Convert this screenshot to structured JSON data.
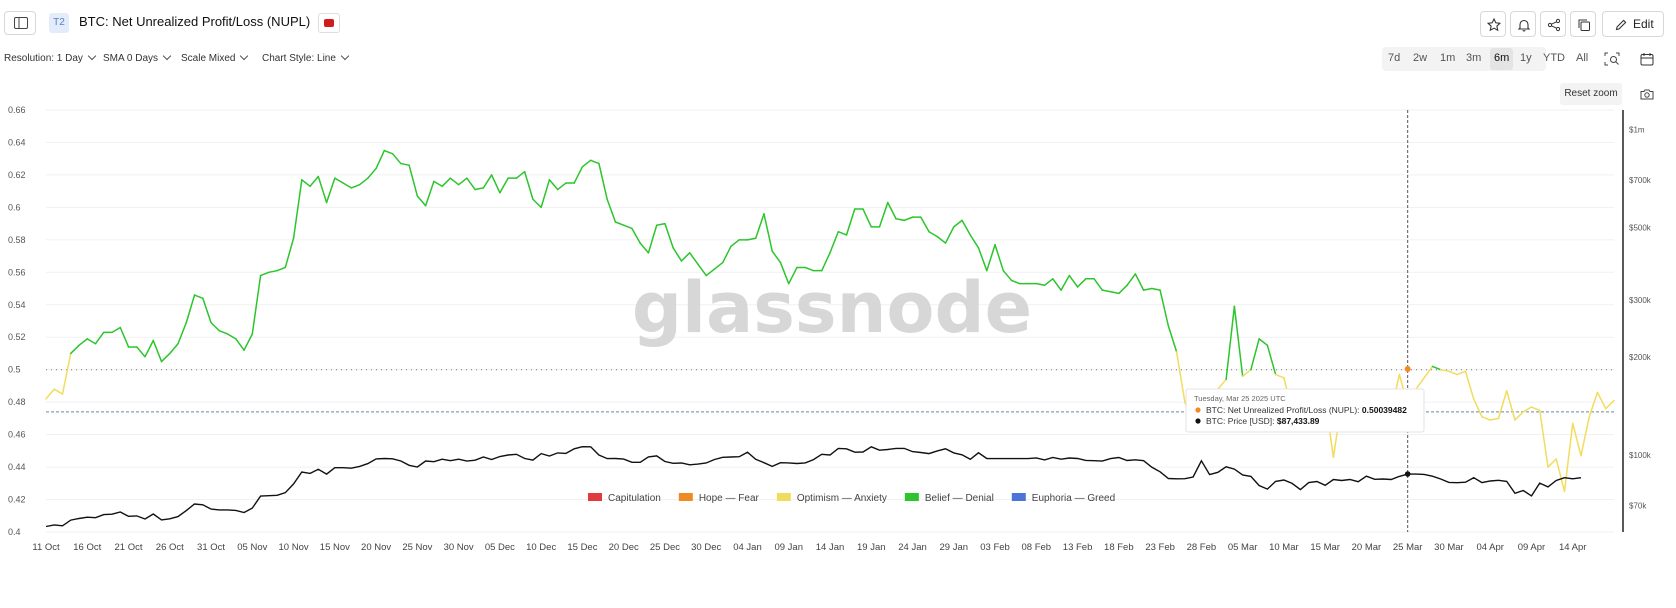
{
  "header": {
    "tier_badge": "T2",
    "title": "BTC: Net Unrealized Profit/Loss (NUPL)",
    "edit_label": "Edit",
    "icons": [
      "sidebar-toggle-icon",
      "youtube-icon",
      "star-icon",
      "bell-icon",
      "share-icon",
      "copy-icon",
      "pencil-icon"
    ]
  },
  "controls": {
    "resolution": "Resolution: 1 Day",
    "sma": "SMA 0 Days",
    "scale": "Scale Mixed",
    "chart_style": "Chart Style: Line",
    "ranges": [
      "7d",
      "2w",
      "1m",
      "3m",
      "6m",
      "1y",
      "YTD",
      "All"
    ],
    "active_range": "6m",
    "reset_zoom": "Reset zoom"
  },
  "chart_data": {
    "type": "line",
    "watermark": "glassnode",
    "x_tick_labels": [
      "11 Oct",
      "16 Oct",
      "21 Oct",
      "26 Oct",
      "31 Oct",
      "05 Nov",
      "10 Nov",
      "15 Nov",
      "20 Nov",
      "25 Nov",
      "30 Nov",
      "05 Dec",
      "10 Dec",
      "15 Dec",
      "20 Dec",
      "25 Dec",
      "30 Dec",
      "04 Jan",
      "09 Jan",
      "14 Jan",
      "19 Jan",
      "24 Jan",
      "29 Jan",
      "03 Feb",
      "08 Feb",
      "13 Feb",
      "18 Feb",
      "23 Feb",
      "28 Feb",
      "05 Mar",
      "10 Mar",
      "15 Mar",
      "20 Mar",
      "25 Mar",
      "30 Mar",
      "04 Apr",
      "09 Apr",
      "14 Apr"
    ],
    "y_left_ticks": [
      "0.66",
      "0.64",
      "0.62",
      "0.6",
      "0.58",
      "0.56",
      "0.54",
      "0.52",
      "0.5",
      "0.48",
      "0.46",
      "0.44",
      "0.42",
      "0.4"
    ],
    "y_left_range": [
      0.4,
      0.66
    ],
    "y_right_ticks": [
      {
        "label": "$1m",
        "value": 1000000
      },
      {
        "label": "$700k",
        "value": 700000
      },
      {
        "label": "$500k",
        "value": 500000
      },
      {
        "label": "$300k",
        "value": 300000
      },
      {
        "label": "$200k",
        "value": 200000
      },
      {
        "label": "$100k",
        "value": 100000
      },
      {
        "label": "$70k",
        "value": 70000
      }
    ],
    "y_right_scale": "log",
    "reference_line": 0.5,
    "legend": [
      {
        "name": "Capitulation",
        "color": "#e0393e"
      },
      {
        "name": "Hope — Fear",
        "color": "#f08a24"
      },
      {
        "name": "Optimism — Anxiety",
        "color": "#f2dc5d"
      },
      {
        "name": "Belief — Denial",
        "color": "#2cc52c"
      },
      {
        "name": "Euphoria — Greed",
        "color": "#4a74d8"
      }
    ],
    "tooltip": {
      "date": "Tuesday, Mar 25 2025 UTC",
      "nupl_label": "BTC: Net Unrealized Profit/Loss (NUPL):",
      "nupl_value": "0.50039482",
      "price_label": "BTC: Price [USD]:",
      "price_value": "$87,433.89"
    },
    "series": [
      {
        "name": "BTC: Net Unrealized Profit/Loss (NUPL)",
        "start_label": "11 Oct",
        "values": [
          0.482,
          0.488,
          0.485,
          0.51,
          0.515,
          0.519,
          0.516,
          0.523,
          0.523,
          0.526,
          0.514,
          0.514,
          0.508,
          0.518,
          0.505,
          0.51,
          0.516,
          0.529,
          0.546,
          0.544,
          0.529,
          0.524,
          0.522,
          0.519,
          0.512,
          0.522,
          0.558,
          0.56,
          0.561,
          0.563,
          0.581,
          0.617,
          0.613,
          0.619,
          0.603,
          0.618,
          0.615,
          0.612,
          0.614,
          0.618,
          0.624,
          0.635,
          0.633,
          0.627,
          0.626,
          0.607,
          0.601,
          0.616,
          0.613,
          0.618,
          0.614,
          0.618,
          0.611,
          0.612,
          0.62,
          0.609,
          0.618,
          0.618,
          0.622,
          0.605,
          0.6,
          0.617,
          0.611,
          0.615,
          0.615,
          0.625,
          0.629,
          0.627,
          0.605,
          0.591,
          0.589,
          0.587,
          0.578,
          0.572,
          0.589,
          0.59,
          0.575,
          0.567,
          0.572,
          0.565,
          0.558,
          0.562,
          0.566,
          0.576,
          0.58,
          0.58,
          0.581,
          0.596,
          0.573,
          0.566,
          0.553,
          0.563,
          0.563,
          0.561,
          0.561,
          0.572,
          0.585,
          0.583,
          0.599,
          0.599,
          0.588,
          0.588,
          0.603,
          0.593,
          0.592,
          0.594,
          0.594,
          0.585,
          0.582,
          0.578,
          0.588,
          0.592,
          0.583,
          0.575,
          0.561,
          0.577,
          0.561,
          0.555,
          0.553,
          0.553,
          0.553,
          0.552,
          0.556,
          0.549,
          0.558,
          0.551,
          0.556,
          0.556,
          0.549,
          0.548,
          0.547,
          0.552,
          0.559,
          0.549,
          0.55,
          0.549,
          0.527,
          0.511,
          0.48,
          0.465,
          0.478,
          0.475,
          0.488,
          0.494,
          0.539,
          0.496,
          0.5,
          0.519,
          0.515,
          0.497,
          0.495,
          0.475,
          0.462,
          0.47,
          0.475,
          0.482,
          0.446,
          0.48,
          0.475,
          0.47,
          0.478,
          0.482,
          0.485,
          0.475,
          0.497,
          0.478,
          0.488,
          0.495,
          0.502,
          0.5,
          0.499,
          0.497,
          0.499,
          0.482,
          0.471,
          0.469,
          0.47,
          0.487,
          0.469,
          0.474,
          0.477,
          0.475,
          0.44,
          0.445,
          0.425,
          0.467,
          0.447,
          0.471,
          0.486,
          0.476,
          0.481
        ]
      },
      {
        "name": "BTC: Price [USD]",
        "start_label": "11 Oct",
        "values": [
          60300,
          61000,
          60600,
          63100,
          63800,
          64400,
          64200,
          65600,
          65800,
          66800,
          64800,
          65000,
          63600,
          65900,
          63200,
          63700,
          64700,
          67500,
          70700,
          70300,
          68200,
          67800,
          67800,
          67600,
          66600,
          68700,
          74800,
          75000,
          75200,
          76600,
          81500,
          88700,
          87800,
          90400,
          87400,
          91400,
          91400,
          91100,
          92300,
          94100,
          97300,
          97600,
          97400,
          95900,
          93000,
          91900,
          95900,
          95400,
          97100,
          96100,
          97100,
          95800,
          96400,
          98600,
          96900,
          99000,
          100000,
          100500,
          97600,
          96500,
          101000,
          99300,
          101500,
          101200,
          104500,
          106100,
          106000,
          100000,
          97500,
          97600,
          97200,
          95000,
          95000,
          98700,
          99400,
          95500,
          94300,
          94500,
          93300,
          93800,
          94500,
          96900,
          98400,
          98600,
          98800,
          102000,
          97000,
          94700,
          92300,
          94700,
          94600,
          94200,
          94600,
          96800,
          100500,
          100000,
          104800,
          104500,
          102000,
          102200,
          106000,
          103500,
          104000,
          104800,
          104800,
          102500,
          101800,
          101000,
          103000,
          104500,
          101500,
          100200,
          97000,
          101600,
          97600,
          97500,
          97500,
          97500,
          97500,
          97500,
          98000,
          96600,
          98300,
          97100,
          97900,
          97600,
          96300,
          96100,
          95800,
          97500,
          98300,
          96200,
          96700,
          96100,
          91700,
          88800,
          84700,
          84500,
          84600,
          85600,
          96000,
          87100,
          88500,
          92000,
          90500,
          86800,
          86000,
          80600,
          78600,
          83000,
          83800,
          81800,
          78300,
          82300,
          82900,
          80700,
          84100,
          83500,
          84100,
          82800,
          86100,
          84200,
          84400,
          84100,
          86000,
          87400,
          87400,
          87200,
          86100,
          84400,
          82400,
          82200,
          82500,
          85200,
          82300,
          83200,
          83600,
          83000,
          76300,
          77800,
          74900,
          82000,
          79800,
          83500,
          85200,
          84500,
          85200
        ]
      }
    ]
  }
}
